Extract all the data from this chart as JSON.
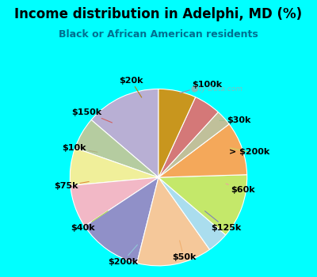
{
  "title": "Income distribution in Adelphi, MD (%)",
  "subtitle": "Black or African American residents",
  "bg_cyan": "#00FFFF",
  "bg_chart": "#d6eee6",
  "watermark": "City-Data.com",
  "title_fontsize": 12,
  "subtitle_fontsize": 9,
  "label_fontsize": 8,
  "labels": [
    "$100k",
    "$30k",
    "> $200k",
    "$60k",
    "$125k",
    "$50k",
    "$200k",
    "$40k",
    "$75k",
    "$10k",
    "$150k",
    "$20k"
  ],
  "values": [
    14,
    6,
    7,
    8,
    12,
    14,
    4,
    12,
    10,
    3,
    5,
    7
  ],
  "colors": [
    "#b8afd4",
    "#b5cca0",
    "#f0ef9a",
    "#f2b8c6",
    "#9090c8",
    "#f5c89a",
    "#aaddee",
    "#c4e86a",
    "#f4a85a",
    "#c0c09a",
    "#d47878",
    "#c8961e"
  ],
  "edge_color": "#ffffff",
  "line_colors": [
    "#9090b8",
    "#a0c090",
    "#d0d060",
    "#f0a0a0",
    "#8080b8",
    "#f0b070",
    "#90c8d8",
    "#b0d850",
    "#e09040",
    "#b0b080",
    "#d06060",
    "#b08010"
  ],
  "start_angle": 90
}
